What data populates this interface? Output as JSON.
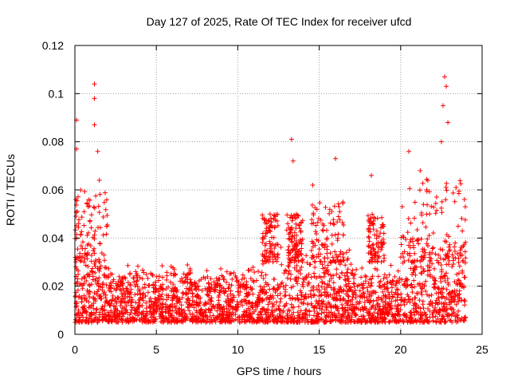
{
  "chart_data": {
    "type": "scatter",
    "title": "Day 127 of 2025, Rate Of TEC Index for receiver ufcd",
    "xlabel": "GPS time / hours",
    "ylabel": "ROTI / TECUs",
    "xlim": [
      0,
      25
    ],
    "ylim": [
      0,
      0.12
    ],
    "x_ticks": [
      0,
      5,
      10,
      15,
      20,
      25
    ],
    "x_tick_labels": [
      "0",
      "5",
      "10",
      "15",
      "20",
      "25"
    ],
    "y_ticks": [
      0,
      0.02,
      0.04,
      0.06,
      0.08,
      0.1,
      0.12
    ],
    "y_tick_labels": [
      "0",
      "0.02",
      "0.04",
      "0.06",
      "0.08",
      "0.1",
      "0.12"
    ],
    "grid": true,
    "marker": "plus",
    "color": "#ff0000",
    "series": [
      {
        "name": "ROTI",
        "description": "dense band of points between ~0.005 and ~0.03 TECU/s spanning 0–24 h",
        "data_range_x": [
          0,
          24
        ],
        "baseline_band": [
          0.005,
          0.03
        ],
        "notable_points": [
          {
            "x": 0.1,
            "y": 0.089
          },
          {
            "x": 0.1,
            "y": 0.077
          },
          {
            "x": 1.2,
            "y": 0.104
          },
          {
            "x": 1.2,
            "y": 0.098
          },
          {
            "x": 1.2,
            "y": 0.087
          },
          {
            "x": 1.4,
            "y": 0.076
          },
          {
            "x": 1.5,
            "y": 0.064
          },
          {
            "x": 13.3,
            "y": 0.081
          },
          {
            "x": 13.4,
            "y": 0.072
          },
          {
            "x": 14.6,
            "y": 0.062
          },
          {
            "x": 16.0,
            "y": 0.073
          },
          {
            "x": 18.2,
            "y": 0.066
          },
          {
            "x": 20.5,
            "y": 0.076
          },
          {
            "x": 21.2,
            "y": 0.068
          },
          {
            "x": 22.7,
            "y": 0.107
          },
          {
            "x": 22.8,
            "y": 0.103
          },
          {
            "x": 22.6,
            "y": 0.095
          },
          {
            "x": 22.9,
            "y": 0.088
          },
          {
            "x": 22.5,
            "y": 0.08
          },
          {
            "x": 23.4,
            "y": 0.061
          }
        ]
      }
    ]
  }
}
